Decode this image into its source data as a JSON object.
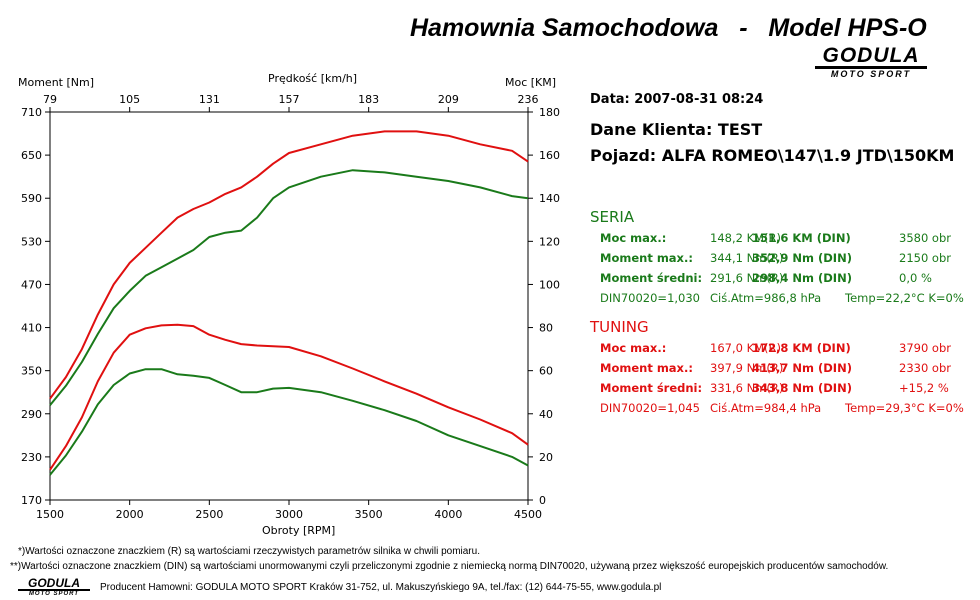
{
  "header": {
    "title": "Hamownia Samochodowa   -   Model HPS-O"
  },
  "brand": {
    "name": "GODULA",
    "sub": "MOTO SPORT"
  },
  "info": {
    "date": "Data: 2007-08-31  08:24",
    "client": "Dane Klienta: TEST",
    "vehicle": "Pojazd: ALFA ROMEO\\147\\1.9 JTD\\150KM"
  },
  "seria": {
    "title": "SERIA",
    "rows": [
      {
        "label": "Moc max.:",
        "r": "148,2 KM(R)",
        "din": "151,6 KM (DIN)",
        "extra": "3580 obr"
      },
      {
        "label": "Moment max.:",
        "r": "344,1 Nm(R)",
        "din": "352,9 Nm (DIN)",
        "extra": "2150 obr"
      },
      {
        "label": "Moment średni:",
        "r": "291,6 Nm(R)",
        "din": "298,4 Nm (DIN)",
        "extra": "0,0 %"
      }
    ],
    "din70020": {
      "factor": "DIN70020=1,030",
      "atm": "Ciś.Atm=986,8 hPa",
      "temp": "Temp=22,2°C  K=0%"
    }
  },
  "tuning": {
    "title": "TUNING",
    "rows": [
      {
        "label": "Moc max.:",
        "r": "167,0 KM(R)",
        "din": "172,8 KM (DIN)",
        "extra": "3790 obr"
      },
      {
        "label": "Moment max.:",
        "r": "397,9 Nm(R)",
        "din": "413,7 Nm (DIN)",
        "extra": "2330 obr"
      },
      {
        "label": "Moment średni:",
        "r": "331,6 Nm(R)",
        "din": "343,8 Nm (DIN)",
        "extra": "+15,2 %"
      }
    ],
    "din70020": {
      "factor": "DIN70020=1,045",
      "atm": "Ciś.Atm=984,4 hPa",
      "temp": "Temp=29,3°C  K=0%"
    }
  },
  "footer": {
    "note1": "*)Wartości oznaczone znaczkiem (R) są wartościami rzeczywistych parametrów silnika w chwili pomiaru.",
    "note2": "**)Wartości oznaczone znaczkiem (DIN) są wartościami unormowanymi czyli przeliczonymi zgodnie z niemiecką normą DIN70020, używaną przez większość europejskich producentów samochodów.",
    "producer": "Producent Hamowni: GODULA MOTO SPORT Kraków 31-752, ul. Makuszyńskiego 9A, tel./fax: (12) 644-75-55, www.godula.pl"
  },
  "colors": {
    "seria": "#1a7a1a",
    "tuning": "#e01010"
  },
  "chart_data": {
    "type": "line",
    "title": "",
    "xlabel": "Obroty [RPM]",
    "ylabel_left": "Moment [Nm]",
    "ylabel_right": "Moc [KM]",
    "xlabel_top": "Prędkość [km/h]",
    "xlim": [
      1500,
      4500
    ],
    "ylim_left": [
      170,
      710
    ],
    "ylim_right": [
      0,
      180
    ],
    "x_ticks": [
      1500,
      2000,
      2500,
      3000,
      3500,
      4000,
      4500
    ],
    "y_left_ticks": [
      170,
      230,
      290,
      350,
      410,
      470,
      530,
      590,
      650,
      710
    ],
    "y_right_ticks": [
      0,
      20,
      40,
      60,
      80,
      100,
      120,
      140,
      160,
      180
    ],
    "top_ticks": [
      "79",
      "105",
      "131",
      "157",
      "183",
      "209",
      "236"
    ],
    "grid": false,
    "series": [
      {
        "name": "Moc SERIA",
        "axis": "right",
        "color": "#1a7a1a",
        "x": [
          1500,
          1600,
          1700,
          1800,
          1900,
          2000,
          2100,
          2200,
          2300,
          2400,
          2500,
          2600,
          2700,
          2800,
          2900,
          3000,
          3200,
          3400,
          3600,
          3800,
          4000,
          4200,
          4400,
          4500
        ],
        "y": [
          44,
          53,
          64,
          77,
          89,
          97,
          104,
          108,
          112,
          116,
          122,
          124,
          125,
          131,
          140,
          145,
          150,
          153,
          152,
          150,
          148,
          145,
          141,
          140
        ]
      },
      {
        "name": "Moc TUNING",
        "axis": "right",
        "color": "#e01010",
        "x": [
          1500,
          1600,
          1700,
          1800,
          1900,
          2000,
          2100,
          2200,
          2300,
          2400,
          2500,
          2600,
          2700,
          2800,
          2900,
          3000,
          3200,
          3400,
          3600,
          3800,
          4000,
          4200,
          4400,
          4500
        ],
        "y": [
          47,
          57,
          70,
          86,
          100,
          110,
          117,
          124,
          131,
          135,
          138,
          142,
          145,
          150,
          156,
          161,
          165,
          169,
          171,
          171,
          169,
          165,
          162,
          157
        ]
      },
      {
        "name": "Moment SERIA",
        "axis": "left",
        "color": "#1a7a1a",
        "x": [
          1500,
          1600,
          1700,
          1800,
          1900,
          2000,
          2100,
          2200,
          2300,
          2400,
          2500,
          2600,
          2700,
          2800,
          2900,
          3000,
          3200,
          3400,
          3600,
          3800,
          4000,
          4200,
          4400,
          4500
        ],
        "y": [
          205,
          232,
          265,
          303,
          330,
          346,
          352,
          352,
          345,
          343,
          340,
          330,
          320,
          320,
          325,
          326,
          320,
          308,
          295,
          280,
          260,
          245,
          230,
          218
        ]
      },
      {
        "name": "Moment TUNING",
        "axis": "left",
        "color": "#e01010",
        "x": [
          1500,
          1600,
          1700,
          1800,
          1900,
          2000,
          2100,
          2200,
          2300,
          2400,
          2500,
          2600,
          2700,
          2800,
          2900,
          3000,
          3200,
          3400,
          3600,
          3800,
          4000,
          4200,
          4400,
          4500
        ],
        "y": [
          212,
          245,
          285,
          335,
          375,
          400,
          409,
          413,
          414,
          412,
          400,
          393,
          387,
          385,
          384,
          383,
          370,
          353,
          335,
          318,
          299,
          282,
          263,
          247
        ]
      }
    ]
  }
}
